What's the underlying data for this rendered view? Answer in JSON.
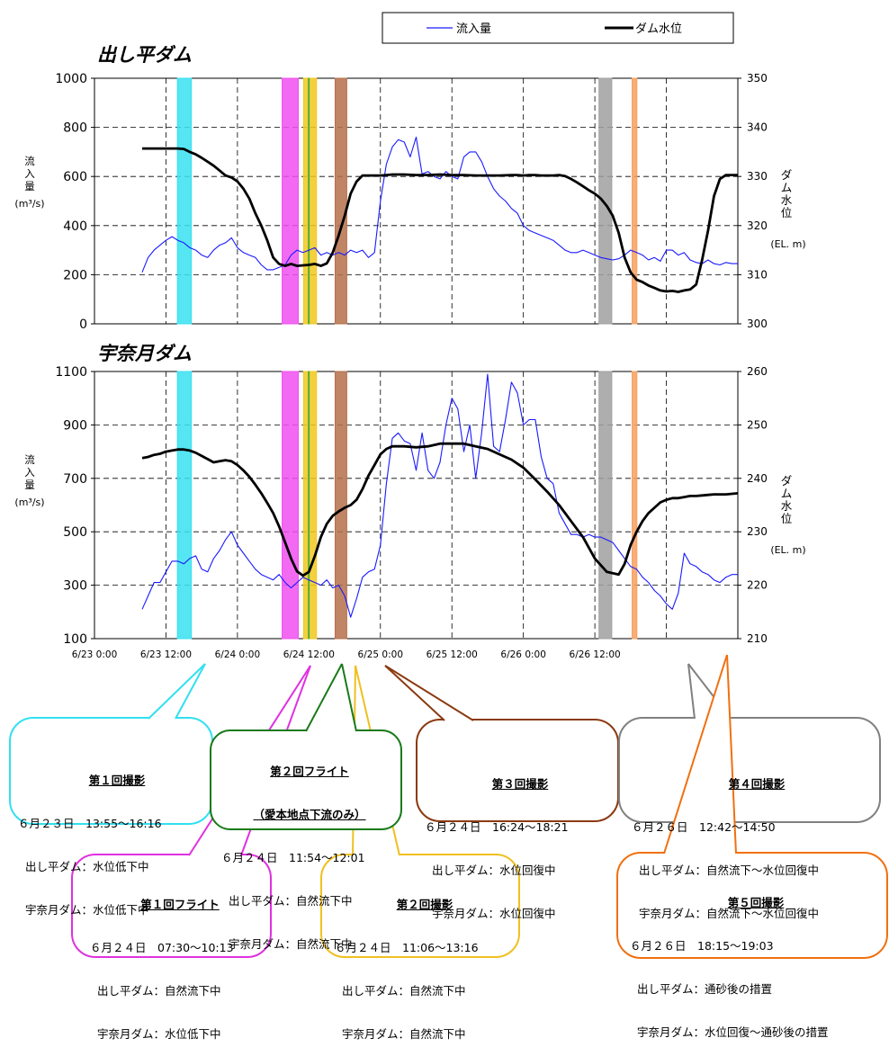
{
  "legend": {
    "inflow_label": "流入量",
    "level_label": "ダム水位"
  },
  "colors": {
    "inflow": "#1a1aff",
    "level": "#000000",
    "band_cyan": "#38e0f0",
    "band_magenta": "#f050f0",
    "band_yellow": "#f2c81e",
    "band_green": "#4caf30",
    "band_brown": "#b5704a",
    "band_gray": "#a0a0a0",
    "band_orange": "#f7a060"
  },
  "x_axis": {
    "ticks": [
      "6/23 0:00",
      "6/23 12:00",
      "6/24 0:00",
      "6/24 12:00",
      "6/25 0:00",
      "6/25 12:00",
      "6/26 0:00",
      "6/26 12:00"
    ]
  },
  "chart_data": [
    {
      "type": "line",
      "title": "出し平ダム",
      "ylabel": "流入量(m3/s)",
      "y2label": "ダム水位(EL. m)",
      "ylim": [
        0,
        1000
      ],
      "y2lim": [
        300,
        350
      ],
      "yticks": [
        "0",
        "200",
        "400",
        "600",
        "800",
        "1000"
      ],
      "y2ticks": [
        "300",
        "310",
        "320",
        "330",
        "340",
        "350"
      ],
      "xlim": [
        0,
        108
      ],
      "grid": true,
      "series": [
        {
          "name": "流入量",
          "axis": "left",
          "x": [
            8,
            9,
            10,
            11,
            12,
            13,
            14,
            15,
            16,
            17,
            18,
            19,
            20,
            21,
            22,
            23,
            24,
            25,
            26,
            27,
            28,
            29,
            30,
            31,
            32,
            33,
            34,
            35,
            36,
            37,
            38,
            39,
            40,
            41,
            42,
            43,
            44,
            45,
            46,
            47,
            48,
            49,
            50,
            51,
            52,
            53,
            54,
            55,
            56,
            57,
            58,
            59,
            60,
            61,
            62,
            63,
            64,
            65,
            66,
            67,
            68,
            69,
            70,
            71,
            72,
            73,
            74,
            75,
            76,
            77,
            78,
            79,
            80,
            81,
            82,
            83,
            84,
            85,
            86,
            87,
            88,
            89,
            90,
            91,
            92,
            93,
            94,
            95,
            96,
            97,
            98,
            99,
            100,
            101,
            102,
            103,
            104,
            105,
            106,
            107,
            108
          ],
          "values": [
            210,
            270,
            300,
            320,
            340,
            355,
            340,
            330,
            310,
            300,
            280,
            270,
            300,
            320,
            330,
            350,
            310,
            290,
            280,
            270,
            240,
            220,
            220,
            230,
            240,
            280,
            300,
            290,
            300,
            310,
            280,
            290,
            280,
            290,
            280,
            300,
            290,
            300,
            270,
            290,
            500,
            650,
            720,
            750,
            740,
            680,
            760,
            610,
            620,
            600,
            590,
            620,
            600,
            590,
            680,
            700,
            700,
            660,
            600,
            550,
            520,
            500,
            470,
            450,
            400,
            380,
            370,
            360,
            350,
            340,
            320,
            300,
            290,
            290,
            300,
            290,
            280,
            270,
            265,
            260,
            265,
            280,
            300,
            290,
            280,
            260,
            270,
            255,
            300,
            300,
            280,
            290,
            260,
            250,
            245,
            260,
            245,
            240,
            250,
            245,
            245
          ]
        },
        {
          "name": "ダム水位",
          "axis": "right",
          "x": [
            8,
            10,
            12,
            14,
            15,
            16,
            17,
            18,
            19,
            20,
            21,
            22,
            23,
            24,
            25,
            26,
            27,
            28,
            29,
            30,
            31,
            32,
            33,
            34,
            35,
            36,
            37,
            38,
            39,
            40,
            41,
            42,
            43,
            44,
            45,
            46,
            47,
            48,
            49,
            50,
            52,
            54,
            56,
            58,
            60,
            62,
            64,
            66,
            68,
            70,
            71,
            72,
            73,
            74,
            75,
            76,
            77,
            78,
            79,
            80,
            81,
            82,
            83,
            84,
            85,
            86,
            87,
            88,
            89,
            90,
            91,
            92,
            93,
            94,
            95,
            96,
            97,
            98,
            99,
            100,
            101,
            102,
            103,
            104,
            105,
            106,
            107,
            108
          ],
          "values": [
            335.7,
            335.7,
            335.7,
            335.7,
            335.6,
            335,
            334.5,
            333.8,
            333,
            332.2,
            331.2,
            330.2,
            329.8,
            329,
            327.5,
            325.5,
            322.5,
            320,
            317,
            313.5,
            312.2,
            311.8,
            312.2,
            311.8,
            311.9,
            312.0,
            312.2,
            311.8,
            312.3,
            314.5,
            318,
            322,
            326.5,
            329,
            330.2,
            330.2,
            330.2,
            330.2,
            330.3,
            330.4,
            330.4,
            330.3,
            330.3,
            330.4,
            330.3,
            330.3,
            330.2,
            330.2,
            330.2,
            330.3,
            330.3,
            330.2,
            330.3,
            330.3,
            330.2,
            330.2,
            330.2,
            330.3,
            330.1,
            329.5,
            328.8,
            328.0,
            327.2,
            326.5,
            325.5,
            324.0,
            322.0,
            318.5,
            313.5,
            310.5,
            309.0,
            308.5,
            307.8,
            307.3,
            306.8,
            306.6,
            306.7,
            306.5,
            306.8,
            307.0,
            308.0,
            313.0,
            319,
            326,
            329.5,
            330.3,
            330.3,
            330.3
          ]
        }
      ],
      "annotations": []
    },
    {
      "type": "line",
      "title": "宇奈月ダム",
      "ylabel": "流入量(m3/s)",
      "y2label": "ダム水位(EL. m)",
      "ylim": [
        100,
        1100
      ],
      "y2lim": [
        210,
        260
      ],
      "yticks": [
        "100",
        "300",
        "500",
        "700",
        "900",
        "1100"
      ],
      "y2ticks": [
        "210",
        "220",
        "230",
        "240",
        "250",
        "260"
      ],
      "xlim": [
        0,
        108
      ],
      "grid": true,
      "series": [
        {
          "name": "流入量",
          "axis": "left",
          "x": [
            8,
            9,
            10,
            11,
            12,
            13,
            14,
            15,
            16,
            17,
            18,
            19,
            20,
            21,
            22,
            23,
            24,
            25,
            26,
            27,
            28,
            29,
            30,
            31,
            32,
            33,
            34,
            35,
            36,
            37,
            38,
            39,
            40,
            41,
            42,
            43,
            44,
            45,
            46,
            47,
            48,
            49,
            50,
            51,
            52,
            53,
            54,
            55,
            56,
            57,
            58,
            59,
            60,
            61,
            62,
            63,
            64,
            65,
            66,
            67,
            68,
            69,
            70,
            71,
            72,
            73,
            74,
            75,
            76,
            77,
            78,
            79,
            80,
            81,
            82,
            83,
            84,
            85,
            86,
            87,
            88,
            89,
            90,
            91,
            92,
            93,
            94,
            95,
            96,
            97,
            98,
            99,
            100,
            101,
            102,
            103,
            104,
            105,
            106,
            107,
            108
          ],
          "values": [
            210,
            260,
            310,
            310,
            350,
            390,
            390,
            380,
            400,
            410,
            360,
            350,
            400,
            430,
            470,
            500,
            450,
            420,
            390,
            360,
            340,
            330,
            320,
            340,
            310,
            290,
            310,
            330,
            320,
            310,
            300,
            320,
            290,
            300,
            260,
            180,
            250,
            330,
            350,
            360,
            450,
            680,
            850,
            870,
            840,
            830,
            730,
            870,
            730,
            700,
            760,
            900,
            1000,
            960,
            800,
            900,
            700,
            870,
            1090,
            820,
            800,
            920,
            1060,
            1020,
            900,
            920,
            920,
            780,
            700,
            680,
            570,
            530,
            490,
            490,
            480,
            490,
            480,
            480,
            470,
            460,
            430,
            400,
            370,
            360,
            330,
            310,
            280,
            260,
            230,
            210,
            270,
            420,
            380,
            370,
            350,
            340,
            320,
            310,
            330,
            340,
            340
          ]
        },
        {
          "name": "ダム水位",
          "axis": "right",
          "x": [
            8,
            9,
            10,
            11,
            12,
            13,
            14,
            15,
            16,
            17,
            18,
            19,
            20,
            21,
            22,
            23,
            24,
            25,
            26,
            27,
            28,
            29,
            30,
            31,
            32,
            33,
            34,
            35,
            36,
            37,
            38,
            39,
            40,
            41,
            42,
            43,
            44,
            45,
            46,
            47,
            48,
            49,
            50,
            52,
            54,
            56,
            58,
            60,
            62,
            64,
            66,
            68,
            70,
            72,
            74,
            76,
            78,
            80,
            82,
            84,
            86,
            88,
            89,
            90,
            91,
            92,
            93,
            94,
            95,
            96,
            97,
            98,
            99,
            100,
            101,
            102,
            103,
            104,
            105,
            106,
            107,
            108
          ],
          "values": [
            243.8,
            244.0,
            244.4,
            244.6,
            245.0,
            245.2,
            245.4,
            245.4,
            245.2,
            244.8,
            244.2,
            243.6,
            243.0,
            243.2,
            243.4,
            243.2,
            242.5,
            241.5,
            240.3,
            238.8,
            237.2,
            235.4,
            233.5,
            231.0,
            228.0,
            225.0,
            222.6,
            221.8,
            222.5,
            225.5,
            229.0,
            231.5,
            233.0,
            233.8,
            234.5,
            235.0,
            236.0,
            238.0,
            240.5,
            242.5,
            244.5,
            245.5,
            246.0,
            246.0,
            245.8,
            246.0,
            246.5,
            246.5,
            246.5,
            246.0,
            245.5,
            244.5,
            243.5,
            242.0,
            239.8,
            237.5,
            235.0,
            232.0,
            229.0,
            225.0,
            222.5,
            222.0,
            224.0,
            227.5,
            230.0,
            232.0,
            233.5,
            234.5,
            235.5,
            236.0,
            236.3,
            236.3,
            236.5,
            236.7,
            236.7,
            236.8,
            236.9,
            237.0,
            237.0,
            237.0,
            237.1,
            237.2
          ]
        }
      ],
      "annotations": []
    }
  ],
  "bands": [
    {
      "name": "第１回撮影",
      "start": 13.917,
      "end": 16.267,
      "color": "#38e0f0"
    },
    {
      "name": "第１回フライト",
      "start": 31.5,
      "end": 34.217,
      "color": "#f050f0"
    },
    {
      "name": "第２回撮影",
      "start": 35.1,
      "end": 37.267,
      "color": "#f2c81e"
    },
    {
      "name": "第２回フライト",
      "start": 35.9,
      "end": 36.017,
      "color": "#4caf30"
    },
    {
      "name": "第３回撮影",
      "start": 40.4,
      "end": 42.35,
      "color": "#b5704a"
    },
    {
      "name": "第４回撮影",
      "start": 84.7,
      "end": 86.833,
      "color": "#a0a0a0"
    },
    {
      "name": "第５回撮影",
      "start": 90.25,
      "end": 91.05,
      "color": "#f7a060"
    }
  ],
  "callouts": [
    {
      "id": "c1",
      "title": "第１回撮影",
      "lines": [
        "６月２３日　13:55～16:16",
        "出し平ダム：水位低下中",
        "宇奈月ダム：水位低下中"
      ],
      "color": "#30e0f0"
    },
    {
      "id": "c2",
      "title": "第２回フライト",
      "title2": "（愛本地点下流のみ）",
      "lines": [
        "６月２４日　11:54～12:01",
        "出し平ダム：自然流下中",
        "宇奈月ダム：自然流下中"
      ],
      "color": "#1a7a1a"
    },
    {
      "id": "c3",
      "title": "第３回撮影",
      "lines": [
        "６月２４日　16:24～18:21",
        "出し平ダム：水位回復中",
        "宇奈月ダム：水位回復中"
      ],
      "color": "#8b3a10"
    },
    {
      "id": "c4",
      "title": "第４回撮影",
      "lines": [
        "６月２６日　12:42～14:50",
        "出し平ダム：自然流下～水位回復中",
        "宇奈月ダム：自然流下～水位回復中"
      ],
      "color": "#808080"
    },
    {
      "id": "c5",
      "title": "第１回フライト",
      "lines": [
        "６月２４日　07:30～10:13",
        "出し平ダム：自然流下中",
        "宇奈月ダム：水位低下中"
      ],
      "color": "#e030e0"
    },
    {
      "id": "c6",
      "title": "第２回撮影",
      "lines": [
        "６月２４日　11:06～13:16",
        "出し平ダム：自然流下中",
        "宇奈月ダム：自然流下中"
      ],
      "color": "#f0c020"
    },
    {
      "id": "c7",
      "title": "第５回撮影",
      "lines": [
        "６月２６日　18:15～19:03",
        "出し平ダム：通砂後の措置",
        "宇奈月ダム：水位回復～通砂後の措置"
      ],
      "color": "#f07010"
    }
  ]
}
